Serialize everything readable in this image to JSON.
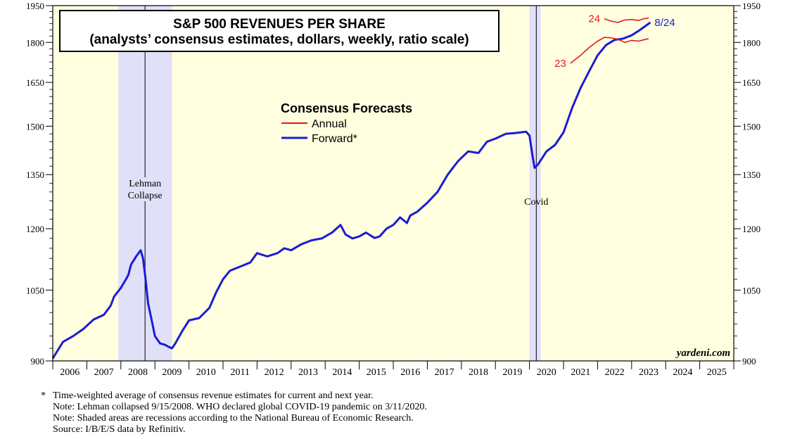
{
  "chart_data": {
    "type": "line",
    "title": "S&P 500 REVENUES PER SHARE",
    "subtitle": "(analysts’ consensus  estimates, dollars, weekly, ratio scale)",
    "y_scale": "log",
    "ylim": [
      900,
      1950
    ],
    "yticks": [
      900,
      1050,
      1200,
      1350,
      1500,
      1650,
      1800,
      1950
    ],
    "xlim": [
      2006,
      2026
    ],
    "year_labels": [
      "2006",
      "2007",
      "2008",
      "2009",
      "2010",
      "2011",
      "2012",
      "2013",
      "2014",
      "2015",
      "2016",
      "2017",
      "2018",
      "2019",
      "2020",
      "2021",
      "2022",
      "2023",
      "2024",
      "2025"
    ],
    "legend": {
      "title": "Consensus Forecasts",
      "items": [
        {
          "name": "Annual",
          "color": "#e31a1c"
        },
        {
          "name": "Forward*",
          "color": "#1b1bd4"
        }
      ]
    },
    "recessions": [
      {
        "start": 2007.92,
        "end": 2009.5
      },
      {
        "start": 2020.0,
        "end": 2020.33
      }
    ],
    "annotations": [
      {
        "lines": [
          "Lehman",
          "Collapse"
        ],
        "date": 2008.71
      },
      {
        "lines": [
          "Covid"
        ],
        "date": 2020.2
      }
    ],
    "series": [
      {
        "name": "Forward*",
        "color": "#1b1bd4",
        "end_label": "8/24",
        "x": [
          2006.0,
          2006.3,
          2006.6,
          2006.9,
          2007.2,
          2007.5,
          2007.7,
          2007.8,
          2008.0,
          2008.15,
          2008.22,
          2008.3,
          2008.45,
          2008.58,
          2008.65,
          2008.72,
          2008.8,
          2008.9,
          2009.0,
          2009.15,
          2009.3,
          2009.4,
          2009.5,
          2009.6,
          2009.8,
          2010.0,
          2010.3,
          2010.6,
          2010.8,
          2011.0,
          2011.2,
          2011.5,
          2011.8,
          2012.0,
          2012.3,
          2012.6,
          2012.8,
          2013.0,
          2013.3,
          2013.6,
          2013.9,
          2014.2,
          2014.45,
          2014.6,
          2014.8,
          2015.0,
          2015.2,
          2015.45,
          2015.6,
          2015.8,
          2016.0,
          2016.2,
          2016.4,
          2016.5,
          2016.7,
          2017.0,
          2017.3,
          2017.6,
          2017.9,
          2018.2,
          2018.5,
          2018.75,
          2019.0,
          2019.3,
          2019.6,
          2019.9,
          2020.0,
          2020.1,
          2020.15,
          2020.25,
          2020.5,
          2020.75,
          2021.0,
          2021.25,
          2021.5,
          2021.75,
          2022.0,
          2022.25,
          2022.5,
          2022.75,
          2023.0,
          2023.25,
          2023.45,
          2023.55
        ],
        "values": [
          905,
          938,
          950,
          965,
          985,
          995,
          1015,
          1035,
          1055,
          1075,
          1085,
          1110,
          1130,
          1145,
          1125,
          1080,
          1020,
          985,
          950,
          935,
          932,
          928,
          925,
          935,
          960,
          983,
          988,
          1010,
          1045,
          1075,
          1095,
          1105,
          1115,
          1138,
          1130,
          1138,
          1150,
          1145,
          1160,
          1170,
          1175,
          1190,
          1210,
          1185,
          1175,
          1180,
          1190,
          1176,
          1180,
          1200,
          1210,
          1230,
          1215,
          1235,
          1245,
          1270,
          1300,
          1350,
          1390,
          1420,
          1415,
          1450,
          1460,
          1475,
          1478,
          1482,
          1470,
          1400,
          1370,
          1380,
          1420,
          1440,
          1480,
          1560,
          1630,
          1690,
          1750,
          1790,
          1810,
          1815,
          1828,
          1850,
          1870,
          1880
        ]
      },
      {
        "name": "Annual 23",
        "color": "#e31a1c",
        "start_label": "23",
        "x": [
          2021.2,
          2021.5,
          2021.75,
          2022.0,
          2022.2,
          2022.4,
          2022.6,
          2022.8,
          2023.0,
          2023.2,
          2023.35,
          2023.5
        ],
        "values": [
          1720,
          1750,
          1780,
          1805,
          1820,
          1818,
          1812,
          1800,
          1808,
          1805,
          1810,
          1815
        ]
      },
      {
        "name": "Annual 24",
        "color": "#e31a1c",
        "start_label": "24",
        "x": [
          2022.2,
          2022.4,
          2022.6,
          2022.8,
          2023.0,
          2023.2,
          2023.35,
          2023.5
        ],
        "values": [
          1895,
          1885,
          1880,
          1890,
          1892,
          1888,
          1895,
          1898
        ]
      }
    ]
  },
  "credit": "yardeni.com",
  "notes": {
    "star_mark": "*",
    "footnote": "Time-weighted average of consensus revenue estimates for current and next year.",
    "lines": [
      "Note: Lehman collapsed 9/15/2008. WHO declared global COVID-19 pandemic on 3/11/2020.",
      "Note: Shaded areas are recessions according to the National Bureau of Economic Research.",
      "Source: I/B/E/S data by Refinitiv."
    ]
  }
}
